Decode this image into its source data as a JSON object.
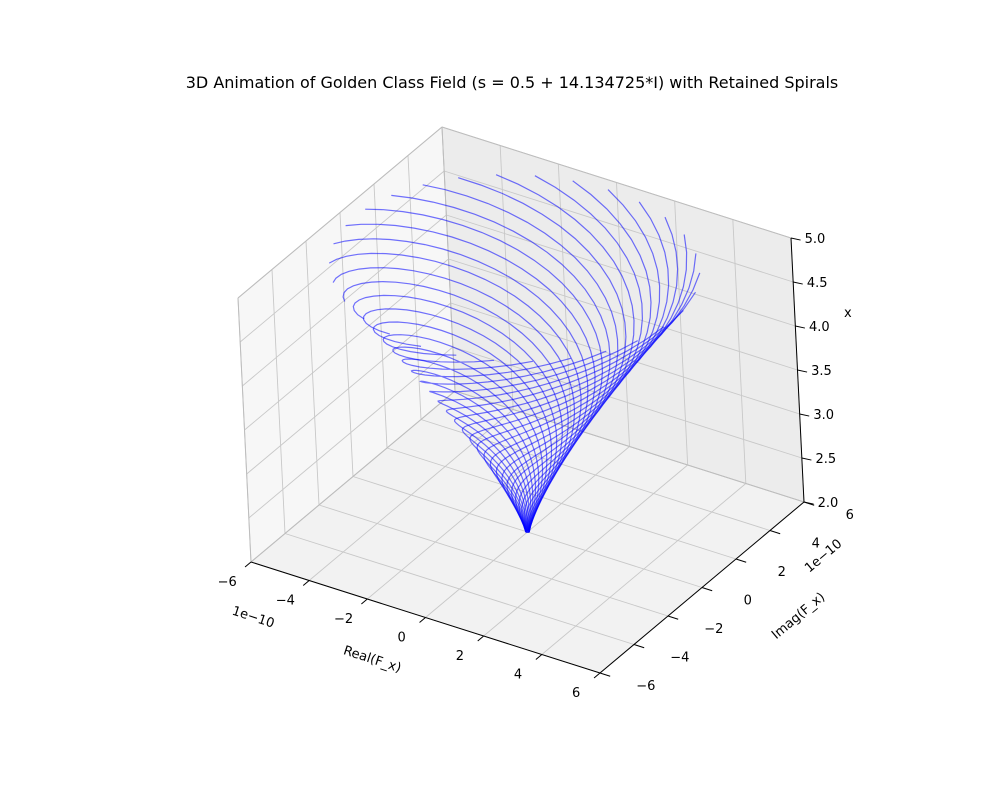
{
  "chart_data": {
    "type": "line",
    "title": "3D Animation of Golden Class Field (s = 0.5 + 14.134725*I) with Retained Spirals",
    "xlabel": "Real(F_x)",
    "ylabel": "Imag(F_x)",
    "zlabel": "x",
    "x_offset_text": "1e−10",
    "y_offset_text": "1e−10",
    "xlim": [
      -6,
      6
    ],
    "ylim": [
      -6,
      6
    ],
    "zlim": [
      2.0,
      5.0
    ],
    "x_ticks": [
      "−6",
      "−4",
      "−2",
      "0",
      "2",
      "4",
      "6"
    ],
    "y_ticks": [
      "−6",
      "−4",
      "−2",
      "0",
      "2",
      "4",
      "6"
    ],
    "z_ticks": [
      "2.0",
      "2.5",
      "3.0",
      "3.5",
      "4.0",
      "4.5",
      "5.0"
    ],
    "grid": true,
    "line_color": "#0000ff",
    "spiral_count": 30,
    "spiral_shape": {
      "z_min": 2.0,
      "z_max": 5.0,
      "apex_radius": 0.05,
      "max_radius": 5.5,
      "turns": 0.75
    }
  }
}
